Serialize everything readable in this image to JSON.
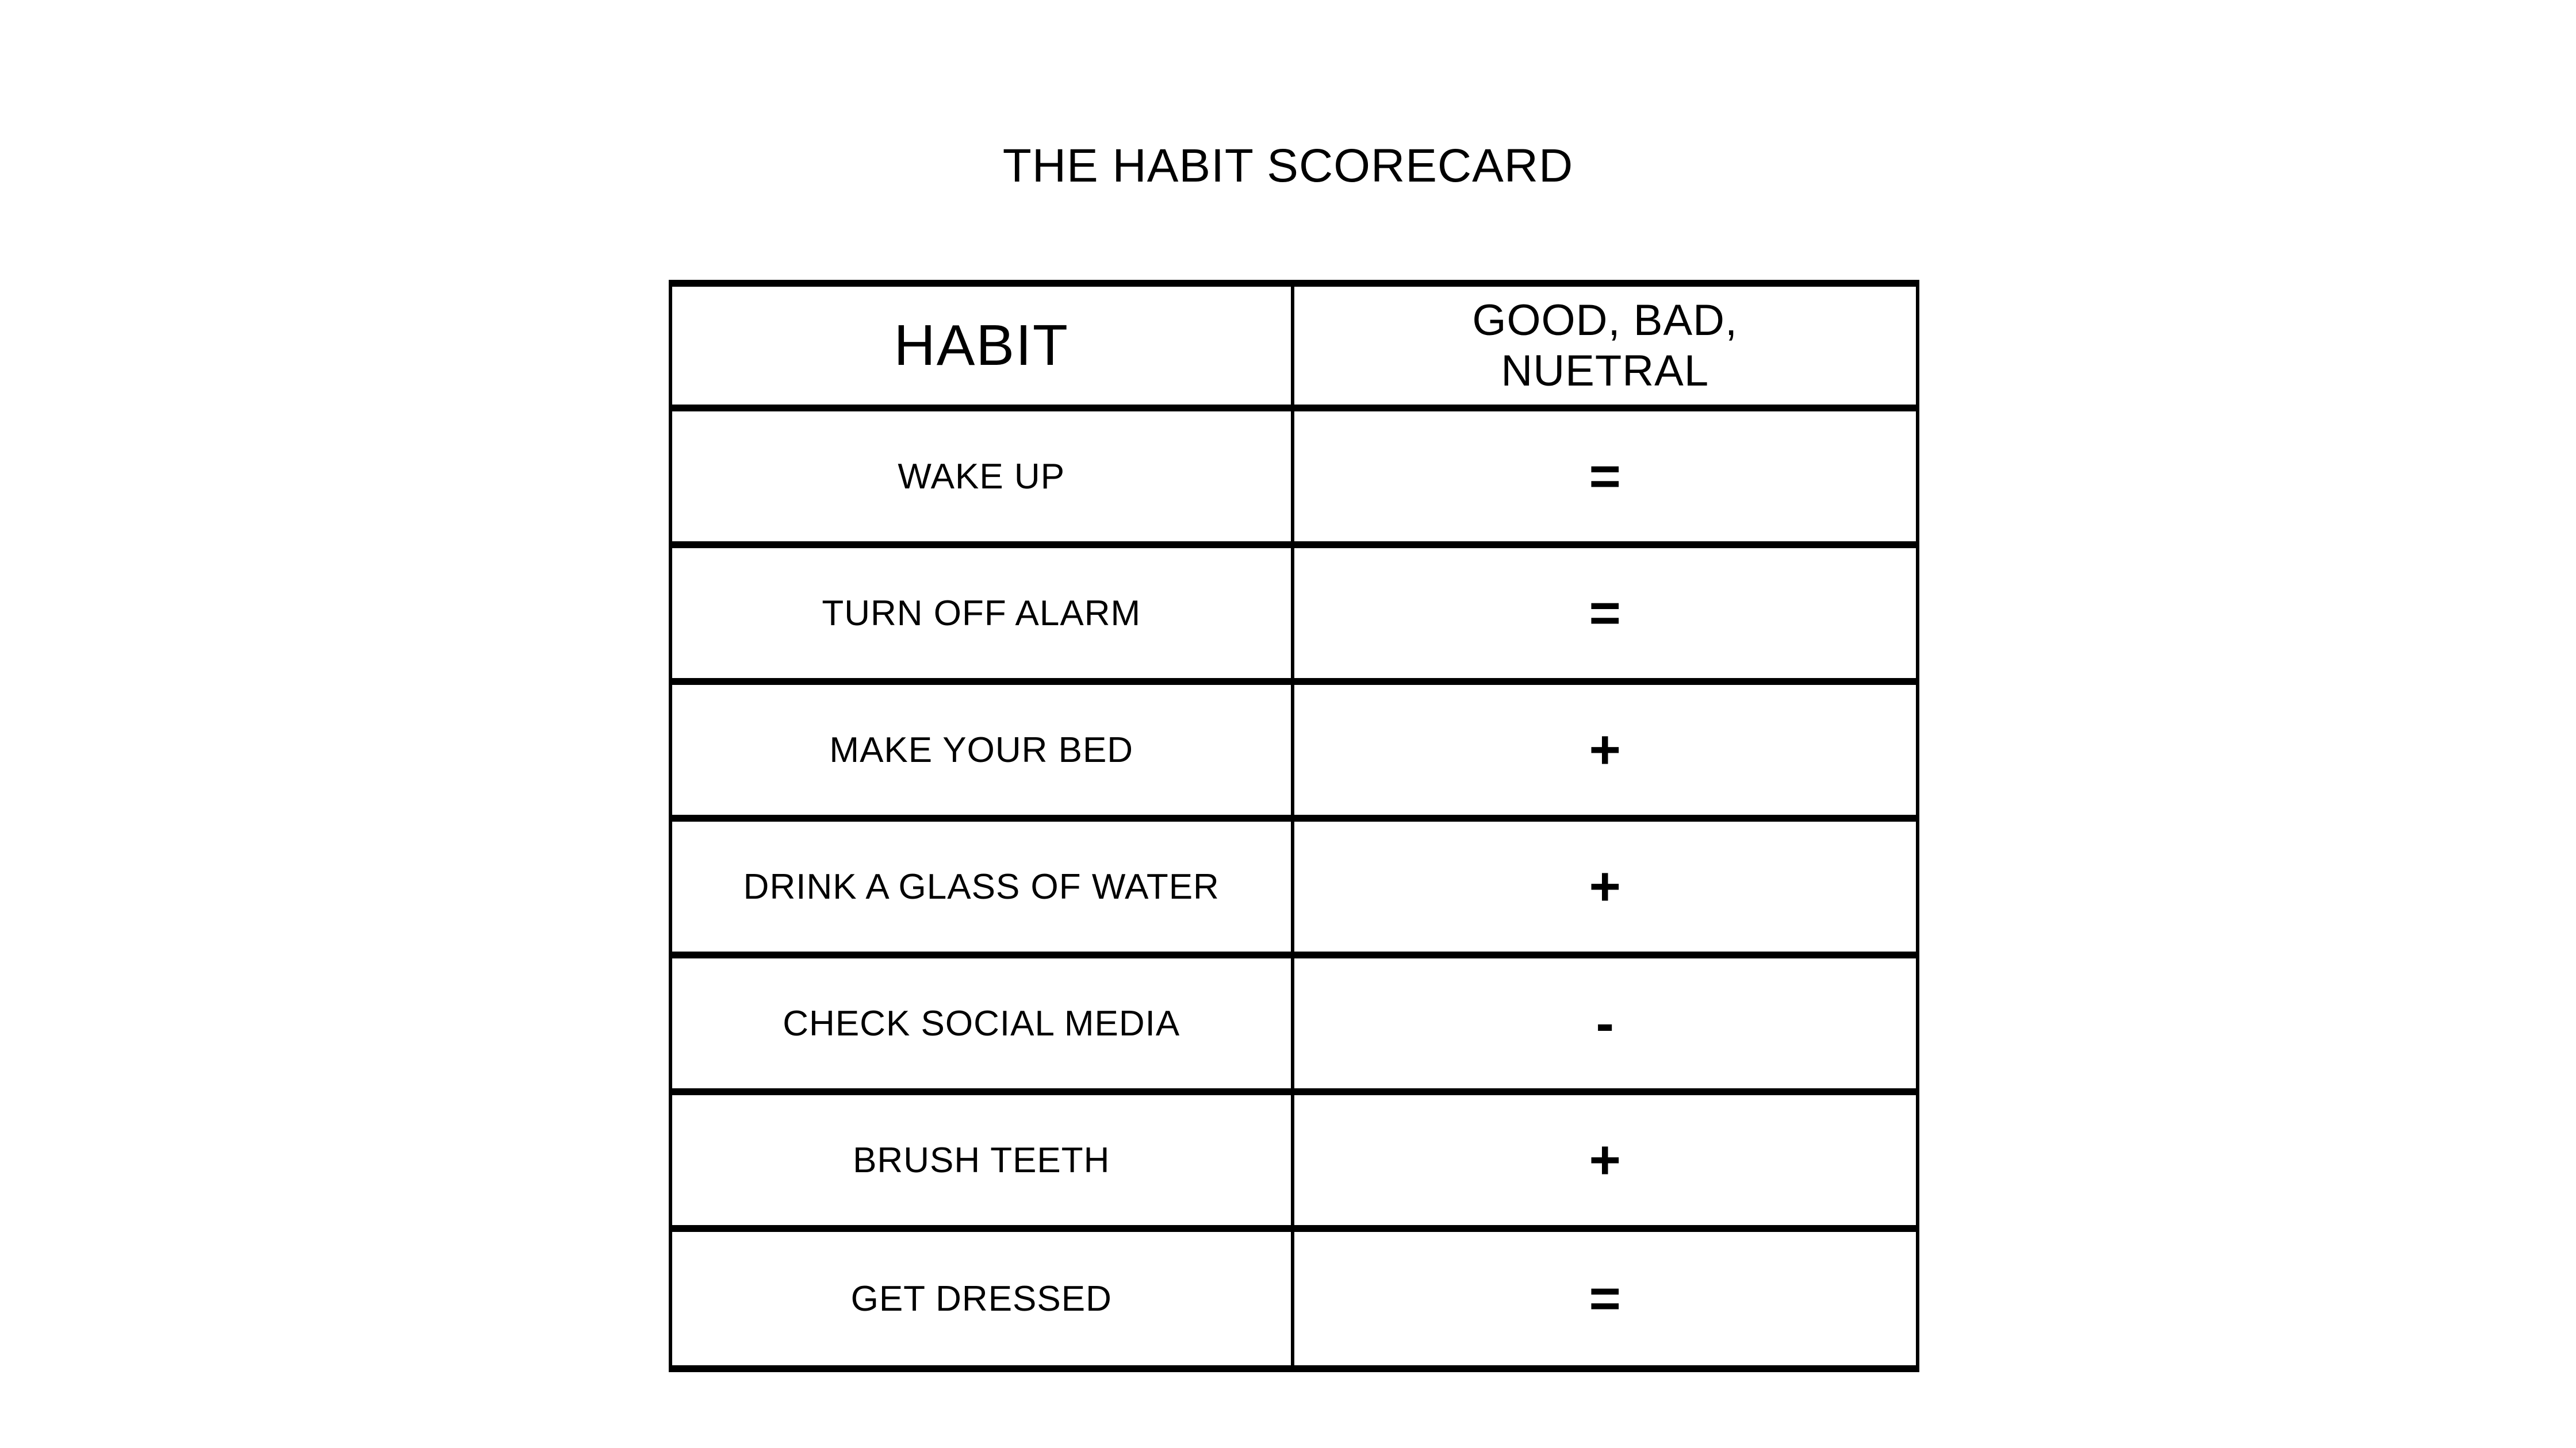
{
  "page": {
    "background": "#ffffff",
    "text_color": "#000000",
    "line_color": "#000000"
  },
  "title": "THE HABIT SCORECARD",
  "table": {
    "header": {
      "habit": "HABIT",
      "score": "GOOD, BAD,\nNUETRAL"
    },
    "rows": [
      {
        "habit": "WAKE UP",
        "score": "="
      },
      {
        "habit": "TURN OFF ALARM",
        "score": "="
      },
      {
        "habit": "MAKE YOUR BED",
        "score": "+"
      },
      {
        "habit": "DRINK A GLASS OF WATER",
        "score": "+"
      },
      {
        "habit": "CHECK SOCIAL MEDIA",
        "score": "-"
      },
      {
        "habit": "BRUSH TEETH",
        "score": "+"
      },
      {
        "habit": "GET DRESSED",
        "score": "="
      }
    ]
  }
}
